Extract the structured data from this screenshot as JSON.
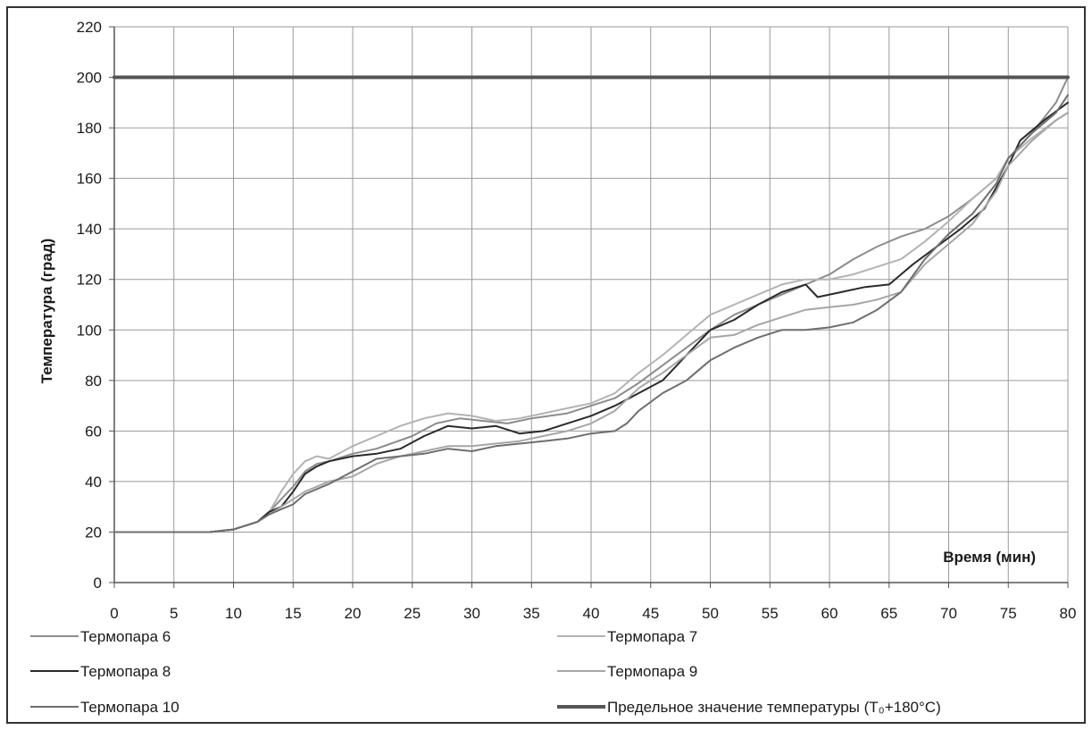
{
  "chart_data": {
    "type": "line",
    "xlabel": "Время (мин)",
    "ylabel": "Температура (град)",
    "xlim": [
      0,
      80
    ],
    "ylim": [
      0,
      220
    ],
    "xticks": [
      0,
      5,
      10,
      15,
      20,
      25,
      30,
      35,
      40,
      45,
      50,
      55,
      60,
      65,
      70,
      75,
      80
    ],
    "yticks": [
      0,
      20,
      40,
      60,
      80,
      100,
      120,
      140,
      160,
      180,
      200,
      220
    ],
    "grid": true,
    "legend_position": "bottom",
    "series": [
      {
        "name": "Термопара 6",
        "color": "#8c8c8c",
        "width": 2,
        "points": [
          [
            0,
            20
          ],
          [
            8,
            20
          ],
          [
            10,
            21
          ],
          [
            12,
            24
          ],
          [
            13,
            28
          ],
          [
            14,
            33
          ],
          [
            15,
            38
          ],
          [
            16,
            44
          ],
          [
            17,
            47
          ],
          [
            18,
            48
          ],
          [
            20,
            51
          ],
          [
            22,
            53
          ],
          [
            25,
            58
          ],
          [
            27,
            63
          ],
          [
            29,
            65
          ],
          [
            31,
            64
          ],
          [
            33,
            63
          ],
          [
            35,
            65
          ],
          [
            38,
            67
          ],
          [
            40,
            70
          ],
          [
            42,
            73
          ],
          [
            44,
            79
          ],
          [
            46,
            86
          ],
          [
            48,
            93
          ],
          [
            50,
            100
          ],
          [
            52,
            106
          ],
          [
            54,
            110
          ],
          [
            56,
            114
          ],
          [
            58,
            118
          ],
          [
            60,
            122
          ],
          [
            62,
            128
          ],
          [
            64,
            133
          ],
          [
            66,
            137
          ],
          [
            68,
            140
          ],
          [
            70,
            145
          ],
          [
            72,
            152
          ],
          [
            74,
            160
          ],
          [
            75,
            168
          ],
          [
            77,
            178
          ],
          [
            79,
            190
          ],
          [
            80,
            200
          ]
        ]
      },
      {
        "name": "Термопара 7",
        "color": "#b3b3b3",
        "width": 2,
        "points": [
          [
            0,
            20
          ],
          [
            8,
            20
          ],
          [
            10,
            21
          ],
          [
            12,
            24
          ],
          [
            13,
            28
          ],
          [
            14,
            36
          ],
          [
            15,
            43
          ],
          [
            16,
            48
          ],
          [
            17,
            50
          ],
          [
            18,
            49
          ],
          [
            20,
            54
          ],
          [
            22,
            58
          ],
          [
            24,
            62
          ],
          [
            26,
            65
          ],
          [
            28,
            67
          ],
          [
            30,
            66
          ],
          [
            32,
            64
          ],
          [
            34,
            65
          ],
          [
            36,
            67
          ],
          [
            38,
            69
          ],
          [
            40,
            71
          ],
          [
            42,
            75
          ],
          [
            44,
            83
          ],
          [
            46,
            90
          ],
          [
            48,
            98
          ],
          [
            50,
            106
          ],
          [
            52,
            110
          ],
          [
            54,
            114
          ],
          [
            56,
            118
          ],
          [
            58,
            120
          ],
          [
            60,
            120
          ],
          [
            62,
            122
          ],
          [
            64,
            125
          ],
          [
            66,
            128
          ],
          [
            68,
            135
          ],
          [
            70,
            143
          ],
          [
            72,
            152
          ],
          [
            74,
            160
          ],
          [
            75,
            168
          ],
          [
            77,
            176
          ],
          [
            79,
            183
          ],
          [
            80,
            186
          ]
        ]
      },
      {
        "name": "Термопара 8",
        "color": "#2a2a2a",
        "width": 2,
        "points": [
          [
            0,
            20
          ],
          [
            8,
            20
          ],
          [
            10,
            21
          ],
          [
            12,
            24
          ],
          [
            13,
            28
          ],
          [
            14,
            30
          ],
          [
            15,
            36
          ],
          [
            16,
            43
          ],
          [
            17,
            46
          ],
          [
            18,
            48
          ],
          [
            20,
            50
          ],
          [
            22,
            51
          ],
          [
            24,
            53
          ],
          [
            26,
            58
          ],
          [
            28,
            62
          ],
          [
            30,
            61
          ],
          [
            32,
            62
          ],
          [
            34,
            59
          ],
          [
            36,
            60
          ],
          [
            38,
            63
          ],
          [
            40,
            66
          ],
          [
            42,
            70
          ],
          [
            44,
            75
          ],
          [
            46,
            80
          ],
          [
            48,
            90
          ],
          [
            50,
            100
          ],
          [
            52,
            104
          ],
          [
            54,
            110
          ],
          [
            56,
            115
          ],
          [
            58,
            118
          ],
          [
            59,
            113
          ],
          [
            61,
            115
          ],
          [
            63,
            117
          ],
          [
            65,
            118
          ],
          [
            67,
            126
          ],
          [
            69,
            133
          ],
          [
            71,
            140
          ],
          [
            73,
            148
          ],
          [
            75,
            165
          ],
          [
            76,
            175
          ],
          [
            78,
            183
          ],
          [
            80,
            190
          ]
        ]
      },
      {
        "name": "Термопара 9",
        "color": "#a6a6a6",
        "width": 2,
        "points": [
          [
            0,
            20
          ],
          [
            8,
            20
          ],
          [
            10,
            21
          ],
          [
            12,
            24
          ],
          [
            13,
            27
          ],
          [
            14,
            30
          ],
          [
            15,
            33
          ],
          [
            16,
            36
          ],
          [
            18,
            40
          ],
          [
            20,
            42
          ],
          [
            22,
            47
          ],
          [
            24,
            50
          ],
          [
            26,
            52
          ],
          [
            28,
            54
          ],
          [
            30,
            54
          ],
          [
            32,
            55
          ],
          [
            34,
            56
          ],
          [
            36,
            58
          ],
          [
            38,
            60
          ],
          [
            40,
            63
          ],
          [
            42,
            68
          ],
          [
            44,
            77
          ],
          [
            46,
            83
          ],
          [
            48,
            90
          ],
          [
            50,
            97
          ],
          [
            52,
            98
          ],
          [
            54,
            102
          ],
          [
            56,
            105
          ],
          [
            58,
            108
          ],
          [
            60,
            109
          ],
          [
            62,
            110
          ],
          [
            64,
            112
          ],
          [
            66,
            115
          ],
          [
            68,
            126
          ],
          [
            70,
            134
          ],
          [
            72,
            142
          ],
          [
            74,
            155
          ],
          [
            75,
            165
          ],
          [
            77,
            175
          ],
          [
            79,
            183
          ],
          [
            80,
            186
          ]
        ]
      },
      {
        "name": "Термопара 10",
        "color": "#6e6e6e",
        "width": 2,
        "points": [
          [
            0,
            20
          ],
          [
            8,
            20
          ],
          [
            10,
            21
          ],
          [
            12,
            24
          ],
          [
            13,
            27
          ],
          [
            14,
            29
          ],
          [
            15,
            31
          ],
          [
            16,
            35
          ],
          [
            18,
            39
          ],
          [
            20,
            44
          ],
          [
            22,
            49
          ],
          [
            24,
            50
          ],
          [
            26,
            51
          ],
          [
            28,
            53
          ],
          [
            30,
            52
          ],
          [
            32,
            54
          ],
          [
            34,
            55
          ],
          [
            36,
            56
          ],
          [
            38,
            57
          ],
          [
            40,
            59
          ],
          [
            42,
            60
          ],
          [
            43,
            63
          ],
          [
            44,
            68
          ],
          [
            46,
            75
          ],
          [
            48,
            80
          ],
          [
            50,
            88
          ],
          [
            52,
            93
          ],
          [
            54,
            97
          ],
          [
            56,
            100
          ],
          [
            58,
            100
          ],
          [
            60,
            101
          ],
          [
            62,
            103
          ],
          [
            64,
            108
          ],
          [
            66,
            115
          ],
          [
            68,
            128
          ],
          [
            70,
            138
          ],
          [
            72,
            146
          ],
          [
            74,
            158
          ],
          [
            75,
            168
          ],
          [
            77,
            178
          ],
          [
            79,
            186
          ],
          [
            80,
            193
          ]
        ]
      },
      {
        "name": "Предельное значение температуры (T₀+180°C)",
        "color": "#555555",
        "width": 4,
        "points": [
          [
            0,
            200
          ],
          [
            80,
            200
          ]
        ]
      }
    ]
  }
}
